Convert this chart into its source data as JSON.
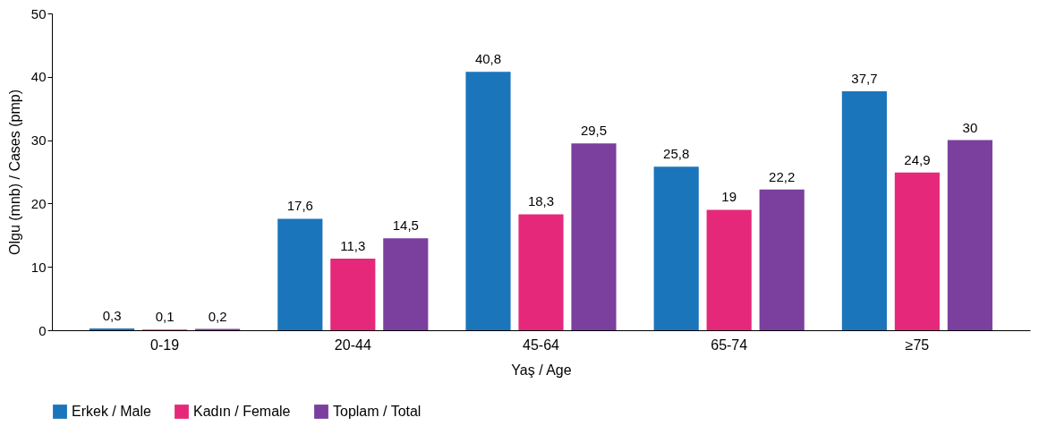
{
  "chart_data": {
    "type": "bar",
    "xlabel": "Yaş / Age",
    "ylabel": "Olgu (mnb) / Cases (pmp)",
    "categories": [
      "0-19",
      "20-44",
      "45-64",
      "65-74",
      "≥75"
    ],
    "series": [
      {
        "name": "Erkek / Male",
        "color": "#1b75bb",
        "values": [
          0.3,
          17.6,
          40.8,
          25.8,
          37.7
        ],
        "value_labels": [
          "0,3",
          "17,6",
          "40,8",
          "25,8",
          "37,7"
        ]
      },
      {
        "name": "Kadın / Female",
        "color": "#e5287a",
        "values": [
          0.1,
          11.3,
          18.3,
          19,
          24.9
        ],
        "value_labels": [
          "0,1",
          "11,3",
          "18,3",
          "19",
          "24,9"
        ]
      },
      {
        "name": "Toplam / Total",
        "color": "#7b3f9e",
        "values": [
          0.2,
          14.5,
          29.5,
          22.2,
          30
        ],
        "value_labels": [
          "0,2",
          "14,5",
          "29,5",
          "22,2",
          "30"
        ]
      }
    ],
    "ylim": [
      0,
      50
    ],
    "yticks": [
      0,
      10,
      20,
      30,
      40,
      50
    ],
    "grid": false,
    "legend": "bottom"
  }
}
